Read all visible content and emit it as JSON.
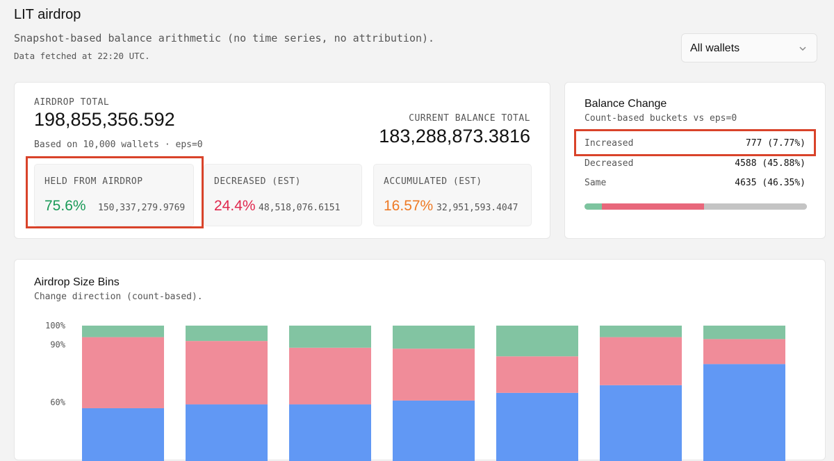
{
  "header": {
    "title": "LIT airdrop",
    "subtitle": "Snapshot-based balance arithmetic (no time series, no attribution).",
    "fetched": "Data fetched at 22:20 UTC."
  },
  "wallet_select": {
    "value": "All wallets",
    "icon": "chevron-down-icon"
  },
  "summary": {
    "airdrop_total_label": "AIRDROP TOTAL",
    "airdrop_total": "198,855,356.592",
    "based_on": "Based on 10,000 wallets · eps=0",
    "current_balance_label": "CURRENT BALANCE TOTAL",
    "current_balance": "183,288,873.3816",
    "held": {
      "label": "HELD FROM AIRDROP",
      "pct": "75.6%",
      "amount": "150,337,279.9769",
      "color": "#1a9a58"
    },
    "decreased": {
      "label": "DECREASED (EST)",
      "pct": "24.4%",
      "amount": "48,518,076.6151",
      "color": "#e0284e"
    },
    "accumulated": {
      "label": "ACCUMULATED (EST)",
      "pct": "16.57%",
      "amount": "32,951,593.4047",
      "color": "#ee7a25"
    }
  },
  "balance_change": {
    "title": "Balance Change",
    "subtitle": "Count-based buckets vs eps=0",
    "rows": [
      {
        "name": "Increased",
        "value": "777 (7.77%)",
        "fraction": 0.0777,
        "color": "#7dc49f"
      },
      {
        "name": "Decreased",
        "value": "4588 (45.88%)",
        "fraction": 0.4588,
        "color": "#e8677b"
      },
      {
        "name": "Same",
        "value": "4635 (46.35%)",
        "fraction": 0.4635,
        "color": "#c4c4c4"
      }
    ]
  },
  "bins": {
    "title": "Airdrop Size Bins",
    "subtitle": "Change direction (count-based)."
  },
  "chart_data": {
    "type": "bar",
    "stacked": true,
    "ytick_labels": [
      "100%",
      "90%",
      "60%"
    ],
    "ylim_visible": [
      55,
      100
    ],
    "colors": {
      "increased": "#82c4a2",
      "decreased": "#f08c99",
      "same": "#6198f4"
    },
    "bars": [
      {
        "blue_top": 57,
        "pink_top": 94,
        "green_top": 100
      },
      {
        "blue_top": 59,
        "pink_top": 92,
        "green_top": 100
      },
      {
        "blue_top": 59,
        "pink_top": 88.5,
        "green_top": 100
      },
      {
        "blue_top": 61,
        "pink_top": 88,
        "green_top": 100
      },
      {
        "blue_top": 65,
        "pink_top": 84,
        "green_top": 100
      },
      {
        "blue_top": 69,
        "pink_top": 94,
        "green_top": 100
      },
      {
        "blue_top": 80,
        "pink_top": 93,
        "green_top": 100
      }
    ]
  }
}
